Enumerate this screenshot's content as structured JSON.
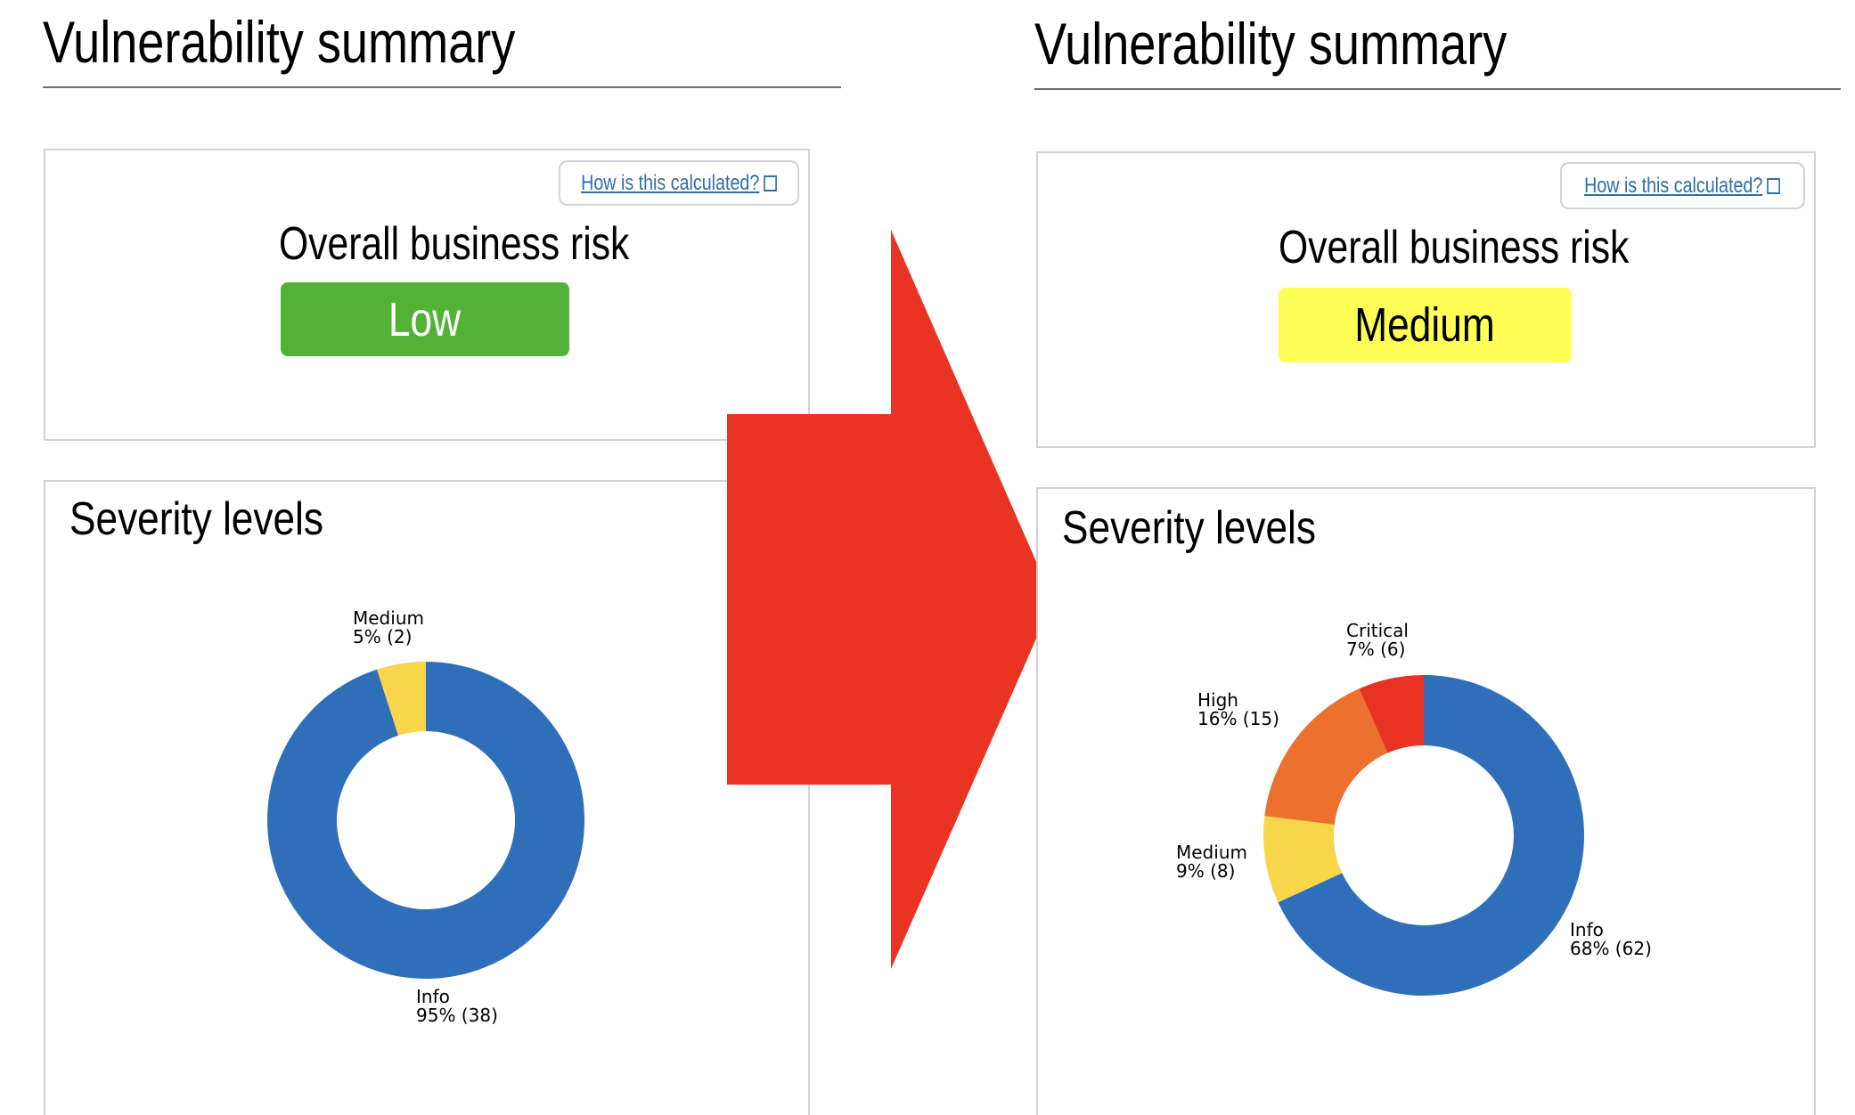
{
  "arrow_color": "#e93323",
  "panels": [
    {
      "title": "Vulnerability summary",
      "link_label": "How is this calculated?",
      "link_icon": "external-link-icon",
      "risk_heading": "Overall business risk",
      "risk_level": "Low",
      "risk_color": "#52b236",
      "risk_text_color": "#ffffff",
      "severity_heading": "Severity levels"
    },
    {
      "title": "Vulnerability summary",
      "link_label": "How is this calculated?",
      "link_icon": "external-link-icon",
      "risk_heading": "Overall business risk",
      "risk_level": "Medium",
      "risk_color": "#ffff55",
      "risk_text_color": "#000000",
      "severity_heading": "Severity levels"
    }
  ],
  "chart_data": [
    {
      "type": "pie",
      "donut": true,
      "categories": [
        "Info",
        "Medium"
      ],
      "values": [
        38,
        2
      ],
      "percent_labels": [
        "95% (38)",
        "5% (2)"
      ],
      "colors": [
        "#2f6fba",
        "#f7d64a"
      ]
    },
    {
      "type": "pie",
      "donut": true,
      "categories": [
        "Info",
        "Medium",
        "High",
        "Critical"
      ],
      "values": [
        62,
        8,
        15,
        6
      ],
      "percent_labels": [
        "68% (62)",
        "9% (8)",
        "16% (15)",
        "7% (6)"
      ],
      "colors": [
        "#2f6fba",
        "#f7d64a",
        "#ec712e",
        "#e83323"
      ]
    }
  ]
}
